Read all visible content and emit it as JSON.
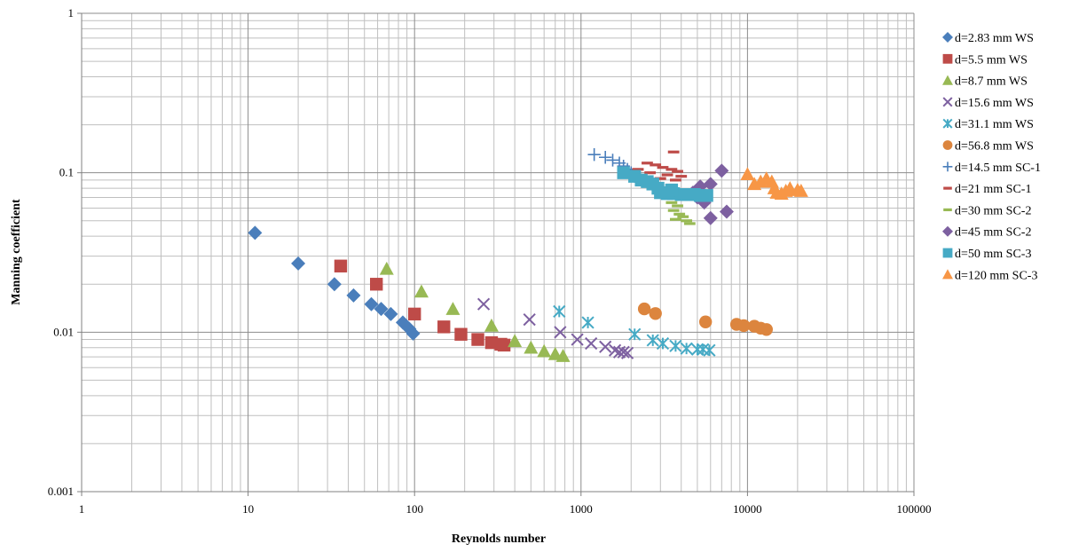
{
  "chart_data": {
    "type": "scatter",
    "title": "",
    "xlabel": "Reynolds number",
    "ylabel": "Manning coefficient",
    "xscale": "log",
    "yscale": "log",
    "xlim": [
      1,
      100000
    ],
    "ylim": [
      0.001,
      1
    ],
    "x_ticks": [
      "1",
      "10",
      "100",
      "1000",
      "10000",
      "100000"
    ],
    "y_ticks": [
      "0.001",
      "0.01",
      "0.1",
      "1"
    ],
    "grid": "major and minor",
    "legend_position": "right",
    "series": [
      {
        "name": "d=2.83 mm WS",
        "marker": "diamond",
        "color": "#4a7ebb",
        "points": [
          [
            11,
            0.042
          ],
          [
            20,
            0.027
          ],
          [
            33,
            0.02
          ],
          [
            43,
            0.017
          ],
          [
            55,
            0.015
          ],
          [
            63,
            0.014
          ],
          [
            72,
            0.013
          ],
          [
            85,
            0.0115
          ],
          [
            93,
            0.0105
          ],
          [
            98,
            0.0098
          ]
        ]
      },
      {
        "name": "d=5.5 mm WS",
        "marker": "square",
        "color": "#be4b48",
        "points": [
          [
            36,
            0.026
          ],
          [
            59,
            0.02
          ],
          [
            100,
            0.013
          ],
          [
            150,
            0.0108
          ],
          [
            190,
            0.0097
          ],
          [
            240,
            0.009
          ],
          [
            290,
            0.0086
          ],
          [
            330,
            0.0084
          ],
          [
            345,
            0.0083
          ]
        ]
      },
      {
        "name": "d=8.7 mm WS",
        "marker": "triangle",
        "color": "#98b954",
        "points": [
          [
            68,
            0.025
          ],
          [
            110,
            0.018
          ],
          [
            170,
            0.014
          ],
          [
            290,
            0.011
          ],
          [
            400,
            0.0088
          ],
          [
            500,
            0.008
          ],
          [
            600,
            0.0076
          ],
          [
            700,
            0.0073
          ],
          [
            780,
            0.0071
          ]
        ]
      },
      {
        "name": "d=15.6 mm WS",
        "marker": "x",
        "color": "#7d60a0",
        "points": [
          [
            260,
            0.015
          ],
          [
            490,
            0.012
          ],
          [
            750,
            0.01
          ],
          [
            950,
            0.009
          ],
          [
            1150,
            0.0085
          ],
          [
            1400,
            0.0081
          ],
          [
            1600,
            0.0077
          ],
          [
            1700,
            0.0075
          ],
          [
            1800,
            0.0075
          ],
          [
            1900,
            0.0074
          ]
        ]
      },
      {
        "name": "d=31.1 mm WS",
        "marker": "asterisk",
        "color": "#46aac5",
        "points": [
          [
            740,
            0.0135
          ],
          [
            1100,
            0.0115
          ],
          [
            2100,
            0.0097
          ],
          [
            2700,
            0.0089
          ],
          [
            3100,
            0.0085
          ],
          [
            3700,
            0.0082
          ],
          [
            4300,
            0.0079
          ],
          [
            5000,
            0.0078
          ],
          [
            5400,
            0.0078
          ],
          [
            5900,
            0.0077
          ]
        ]
      },
      {
        "name": "d=56.8 mm WS",
        "marker": "circle",
        "color": "#dc853e",
        "points": [
          [
            2400,
            0.014
          ],
          [
            2800,
            0.0131
          ],
          [
            5600,
            0.0116
          ],
          [
            8600,
            0.0112
          ],
          [
            9500,
            0.011
          ],
          [
            11000,
            0.0109
          ],
          [
            12000,
            0.0106
          ],
          [
            13000,
            0.0104
          ]
        ]
      },
      {
        "name": "d=14.5 mm SC-1",
        "marker": "plus",
        "color": "#4a7ebb",
        "points": [
          [
            1200,
            0.13
          ],
          [
            1400,
            0.125
          ],
          [
            1550,
            0.12
          ],
          [
            1700,
            0.115
          ],
          [
            1800,
            0.11
          ],
          [
            1900,
            0.105
          ],
          [
            2000,
            0.1
          ],
          [
            2100,
            0.095
          ],
          [
            2300,
            0.09
          ]
        ]
      },
      {
        "name": "d=21 mm SC-1",
        "marker": "dash",
        "color": "#be4b48",
        "points": [
          [
            3600,
            0.135
          ],
          [
            2500,
            0.115
          ],
          [
            2800,
            0.112
          ],
          [
            3100,
            0.108
          ],
          [
            3500,
            0.105
          ],
          [
            3800,
            0.102
          ],
          [
            2200,
            0.105
          ],
          [
            2600,
            0.1
          ],
          [
            3300,
            0.097
          ],
          [
            4000,
            0.095
          ],
          [
            3000,
            0.092
          ],
          [
            3700,
            0.09
          ]
        ]
      },
      {
        "name": "d=30 mm SC-2",
        "marker": "dash",
        "color": "#98b954",
        "points": [
          [
            3000,
            0.075
          ],
          [
            3300,
            0.07
          ],
          [
            3500,
            0.065
          ],
          [
            3800,
            0.062
          ],
          [
            3600,
            0.058
          ],
          [
            3900,
            0.055
          ],
          [
            4100,
            0.053
          ],
          [
            3700,
            0.051
          ],
          [
            4300,
            0.05
          ],
          [
            4500,
            0.048
          ]
        ]
      },
      {
        "name": "d=45 mm SC-2",
        "marker": "diamond",
        "color": "#7d60a0",
        "points": [
          [
            7000,
            0.103
          ],
          [
            6000,
            0.085
          ],
          [
            5200,
            0.082
          ],
          [
            4700,
            0.075
          ],
          [
            5000,
            0.07
          ],
          [
            5400,
            0.067
          ],
          [
            7500,
            0.057
          ],
          [
            6000,
            0.052
          ],
          [
            5500,
            0.065
          ]
        ]
      },
      {
        "name": "d=50 mm SC-3",
        "marker": "square",
        "color": "#46aac5",
        "points": [
          [
            1800,
            0.1
          ],
          [
            2100,
            0.095
          ],
          [
            2300,
            0.09
          ],
          [
            2500,
            0.088
          ],
          [
            2700,
            0.085
          ],
          [
            3000,
            0.075
          ],
          [
            3300,
            0.074
          ],
          [
            3600,
            0.074
          ],
          [
            4000,
            0.073
          ],
          [
            4400,
            0.073
          ],
          [
            4800,
            0.073
          ],
          [
            5200,
            0.072
          ],
          [
            5700,
            0.072
          ],
          [
            2900,
            0.08
          ],
          [
            3500,
            0.078
          ]
        ]
      },
      {
        "name": "d=120 mm SC-3",
        "marker": "triangle",
        "color": "#f79646",
        "points": [
          [
            10000,
            0.098
          ],
          [
            11000,
            0.085
          ],
          [
            12000,
            0.088
          ],
          [
            13000,
            0.092
          ],
          [
            14000,
            0.088
          ],
          [
            14500,
            0.08
          ],
          [
            15000,
            0.075
          ],
          [
            16000,
            0.074
          ],
          [
            17000,
            0.077
          ],
          [
            18000,
            0.08
          ],
          [
            20000,
            0.078
          ],
          [
            21000,
            0.077
          ]
        ]
      }
    ]
  }
}
